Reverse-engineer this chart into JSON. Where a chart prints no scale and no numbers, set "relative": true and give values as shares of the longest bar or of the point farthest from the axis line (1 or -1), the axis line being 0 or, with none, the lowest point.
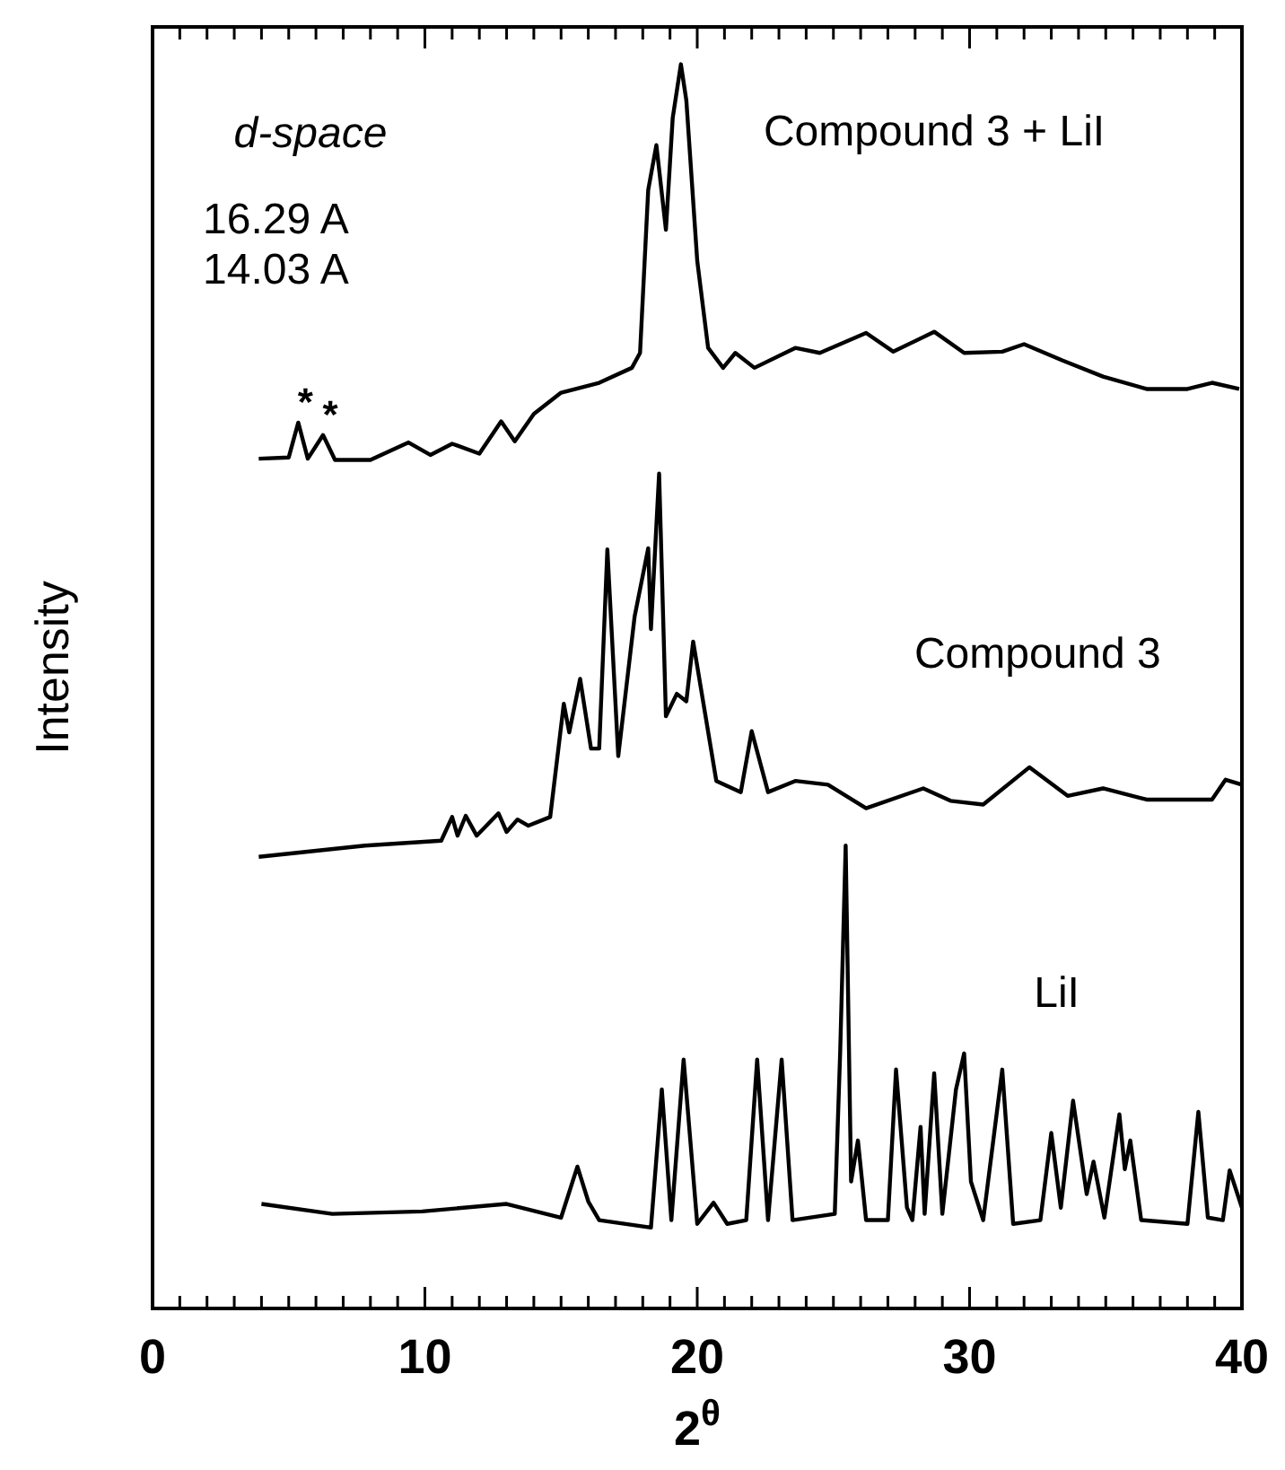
{
  "chart_data": {
    "type": "line",
    "relative": true,
    "xlabel": "2$^{θ}$",
    "ylabel": "Intensity",
    "xlim": [
      0,
      40
    ],
    "xticks": [
      0,
      {
        "value": 1,
        "label": null
      },
      {
        "value": 2,
        "label": null
      },
      {
        "value": 3,
        "label": null
      },
      {
        "value": 4,
        "label": null
      },
      {
        "value": 5,
        "label": null
      },
      {
        "value": 6,
        "label": null
      },
      {
        "value": 7,
        "label": null
      },
      {
        "value": 8,
        "label": null
      },
      {
        "value": 9,
        "label": null
      },
      10,
      {
        "value": 11,
        "label": null
      },
      {
        "value": 12,
        "label": null
      },
      {
        "value": 13,
        "label": null
      },
      {
        "value": 14,
        "label": null
      },
      {
        "value": 15,
        "label": null
      },
      {
        "value": 16,
        "label": null
      },
      {
        "value": 17,
        "label": null
      },
      {
        "value": 18,
        "label": null
      },
      {
        "value": 19,
        "label": null
      },
      20,
      {
        "value": 21,
        "label": null
      },
      {
        "value": 22,
        "label": null
      },
      {
        "value": 23,
        "label": null
      },
      {
        "value": 24,
        "label": null
      },
      {
        "value": 25,
        "label": null
      },
      {
        "value": 26,
        "label": null
      },
      {
        "value": 27,
        "label": null
      },
      {
        "value": 28,
        "label": null
      },
      {
        "value": 29,
        "label": null
      },
      30,
      {
        "value": 31,
        "label": null
      },
      {
        "value": 32,
        "label": null
      },
      {
        "value": 33,
        "label": null
      },
      {
        "value": 34,
        "label": null
      },
      {
        "value": 35,
        "label": null
      },
      {
        "value": 36,
        "label": null
      },
      {
        "value": 37,
        "label": null
      },
      {
        "value": 38,
        "label": null
      },
      {
        "value": 39,
        "label": null
      },
      40
    ],
    "tick_labels": "x",
    "grid": false,
    "marker": "none",
    "line_style": "solid",
    "annotations": [
      "d-space",
      "16.29 A",
      "14.03 A",
      {
        "text": "*",
        "x": 5.35,
        "y": 0.712
      },
      {
        "text": "*",
        "x": 6.26,
        "y": 0.702
      }
    ],
    "series": [
      {
        "name": "Compound 3 + LiI",
        "color": "#000000",
        "x": [
          3.9,
          5.0,
          5.35,
          5.7,
          6.26,
          6.7,
          8,
          9.4,
          10.2,
          11.0,
          12.0,
          12.8,
          13.3,
          14.0,
          15.0,
          16.4,
          17.6,
          17.9,
          18.2,
          18.5,
          18.85,
          19.1,
          19.4,
          19.6,
          20.0,
          20.4,
          20.95,
          21.4,
          22.1,
          23.6,
          24.5,
          26.2,
          27.2,
          28.7,
          29.8,
          31.2,
          32.0,
          33.4,
          34.9,
          36.5,
          38.0,
          38.9,
          39.9
        ],
        "values": [
          0.683,
          0.684,
          0.712,
          0.683,
          0.702,
          0.682,
          0.682,
          0.696,
          0.686,
          0.695,
          0.687,
          0.713,
          0.697,
          0.719,
          0.736,
          0.744,
          0.756,
          0.768,
          0.899,
          0.935,
          0.867,
          0.957,
          1.0,
          0.971,
          0.842,
          0.772,
          0.756,
          0.768,
          0.756,
          0.772,
          0.768,
          0.784,
          0.769,
          0.785,
          0.768,
          0.769,
          0.775,
          0.762,
          0.749,
          0.739,
          0.739,
          0.744,
          0.739
        ]
      },
      {
        "name": "Compound 3",
        "color": "#000000",
        "x": [
          3.9,
          7.8,
          10.6,
          11.0,
          11.2,
          11.5,
          11.9,
          12.7,
          13.0,
          13.4,
          13.8,
          14.6,
          15.1,
          15.3,
          15.7,
          16.1,
          16.4,
          16.7,
          17.1,
          17.7,
          18.2,
          18.3,
          18.6,
          18.85,
          19.25,
          19.6,
          19.85,
          20.7,
          21.6,
          22.0,
          22.6,
          23.6,
          24.8,
          26.2,
          28.3,
          29.3,
          30.5,
          32.2,
          33.6,
          34.9,
          36.5,
          38.9,
          39.4,
          40
        ],
        "values": [
          0.363,
          0.372,
          0.376,
          0.395,
          0.38,
          0.396,
          0.38,
          0.398,
          0.383,
          0.393,
          0.388,
          0.395,
          0.486,
          0.463,
          0.506,
          0.45,
          0.45,
          0.61,
          0.444,
          0.556,
          0.611,
          0.546,
          0.671,
          0.476,
          0.494,
          0.488,
          0.536,
          0.424,
          0.415,
          0.464,
          0.415,
          0.424,
          0.421,
          0.402,
          0.418,
          0.408,
          0.405,
          0.435,
          0.412,
          0.418,
          0.409,
          0.409,
          0.425,
          0.421
        ]
      },
      {
        "name": "LiI",
        "color": "#000000",
        "x": [
          4.0,
          6.6,
          9.9,
          13.0,
          15.0,
          15.6,
          16.0,
          16.4,
          18.3,
          18.7,
          19.05,
          19.5,
          20.0,
          20.6,
          21.1,
          21.8,
          22.2,
          22.6,
          23.1,
          23.5,
          25.05,
          25.25,
          25.45,
          25.65,
          25.9,
          26.2,
          27.0,
          27.3,
          27.7,
          27.9,
          28.2,
          28.35,
          28.7,
          29.0,
          29.5,
          29.8,
          30.05,
          30.5,
          31.2,
          31.6,
          32.6,
          33.0,
          33.35,
          33.8,
          34.3,
          34.55,
          34.95,
          35.5,
          35.7,
          35.9,
          36.3,
          38.0,
          38.4,
          38.75,
          39.3,
          39.55,
          40.0
        ],
        "values": [
          0.084,
          0.076,
          0.078,
          0.084,
          0.073,
          0.114,
          0.086,
          0.071,
          0.065,
          0.176,
          0.071,
          0.2,
          0.068,
          0.085,
          0.068,
          0.071,
          0.2,
          0.071,
          0.2,
          0.071,
          0.076,
          0.207,
          0.372,
          0.102,
          0.135,
          0.071,
          0.071,
          0.192,
          0.081,
          0.071,
          0.146,
          0.076,
          0.189,
          0.076,
          0.176,
          0.205,
          0.102,
          0.071,
          0.192,
          0.068,
          0.071,
          0.141,
          0.081,
          0.167,
          0.092,
          0.118,
          0.073,
          0.156,
          0.112,
          0.135,
          0.071,
          0.068,
          0.158,
          0.073,
          0.071,
          0.111,
          0.081
        ]
      }
    ]
  }
}
